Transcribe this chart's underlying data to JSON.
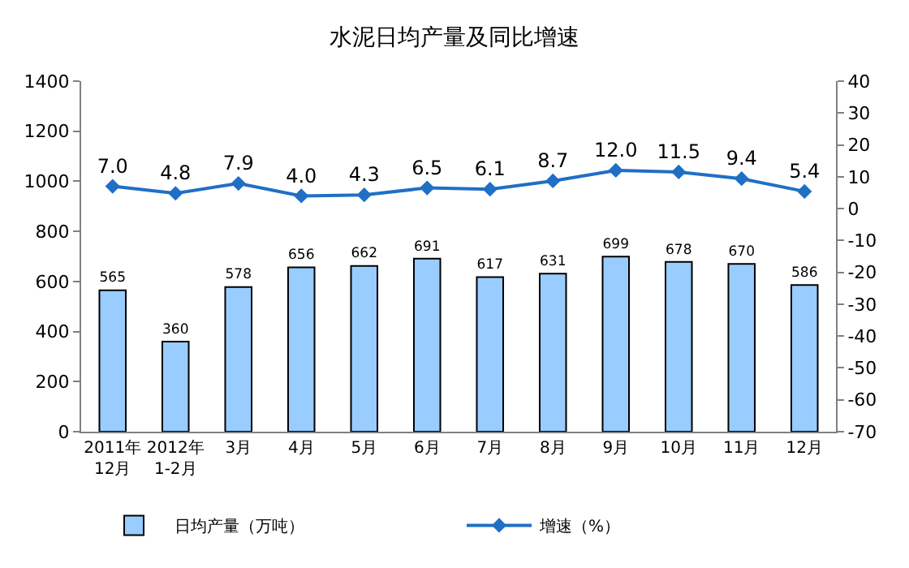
{
  "chart_data": {
    "type": "bar",
    "title": "水泥日均产量及同比增速",
    "categories": [
      "2011年\n12月",
      "2012年\n1-2月",
      "3月",
      "4月",
      "5月",
      "6月",
      "7月",
      "8月",
      "9月",
      "10月",
      "11月",
      "12月"
    ],
    "series": [
      {
        "name": "日均产量（万吨）",
        "color": "#99ccff",
        "values": [
          565,
          360,
          578,
          656,
          662,
          691,
          617,
          631,
          699,
          678,
          670,
          586
        ],
        "value_labels": [
          "565",
          "360",
          "578",
          "656",
          "662",
          "691",
          "617",
          "631",
          "699",
          "678",
          "670",
          "586"
        ]
      },
      {
        "name": "增速（%）",
        "type": "line",
        "axis": "y2",
        "color": "#1f6fc5",
        "values": [
          7.0,
          4.8,
          7.9,
          4.0,
          4.3,
          6.5,
          6.1,
          8.7,
          12.0,
          11.5,
          9.4,
          5.4
        ],
        "value_labels": [
          "7.0",
          "4.8",
          "7.9",
          "4.0",
          "4.3",
          "6.5",
          "6.1",
          "8.7",
          "12.0",
          "11.5",
          "9.4",
          "5.4"
        ]
      }
    ],
    "ylim": [
      0,
      1400
    ],
    "yticks": [
      0,
      200,
      400,
      600,
      800,
      1000,
      1200,
      1400
    ],
    "y2lim": [
      -70,
      40
    ],
    "y2ticks": [
      -70,
      -60,
      -50,
      -40,
      -30,
      -20,
      -10,
      0,
      10,
      20,
      30,
      40
    ],
    "marker": "diamond",
    "line_style": "solid",
    "legend": "bottom"
  }
}
